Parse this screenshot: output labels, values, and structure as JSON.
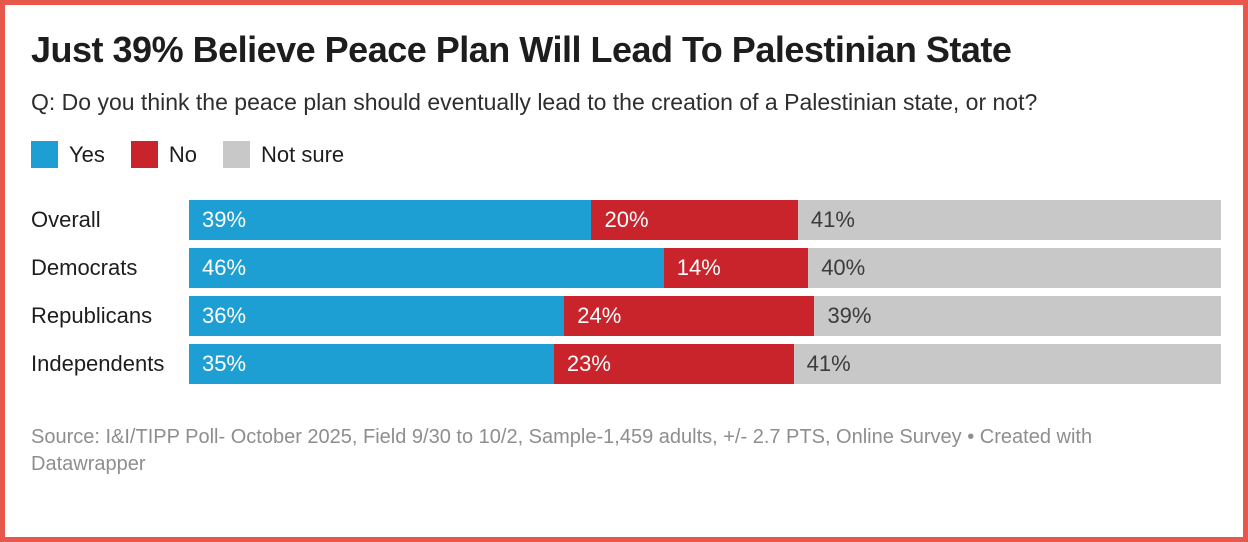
{
  "title": "Just 39% Believe Peace Plan Will Lead To Palestinian State",
  "question": "Q: Do you think the peace plan should eventually lead to the creation of a Palestinian state, or not?",
  "colors": {
    "border_accent": "#e8574c",
    "yes_blue": "#1d9fd4",
    "no_red": "#c9232b",
    "not_sure_gray": "#c8c8c8",
    "title_text": "#1d1d1d",
    "source_text": "#8e8e8e"
  },
  "chart_data": {
    "type": "bar",
    "orientation": "horizontal",
    "stacked": true,
    "normalized_to_100": true,
    "grid": false,
    "legend_position": "top-left",
    "value_suffix": "%",
    "categories": [
      "Overall",
      "Democrats",
      "Republicans",
      "Independents"
    ],
    "series": [
      {
        "name": "Yes",
        "color": "#1d9fd4",
        "label_color": "#ffffff",
        "values": [
          39,
          46,
          36,
          35
        ]
      },
      {
        "name": "No",
        "color": "#c9232b",
        "label_color": "#ffffff",
        "values": [
          20,
          14,
          24,
          23
        ]
      },
      {
        "name": "Not sure",
        "color": "#c8c8c8",
        "label_color": "#3b3b3b",
        "values": [
          41,
          40,
          39,
          41
        ]
      }
    ]
  },
  "source_note": {
    "prefix": "Source: I&I/TIPP Poll- October 2025, Field 9/30 to 10/2, Sample-1,459 adults, +/- 2.7 PTS, Online Survey • Created with ",
    "attribution": "Datawrapper"
  }
}
